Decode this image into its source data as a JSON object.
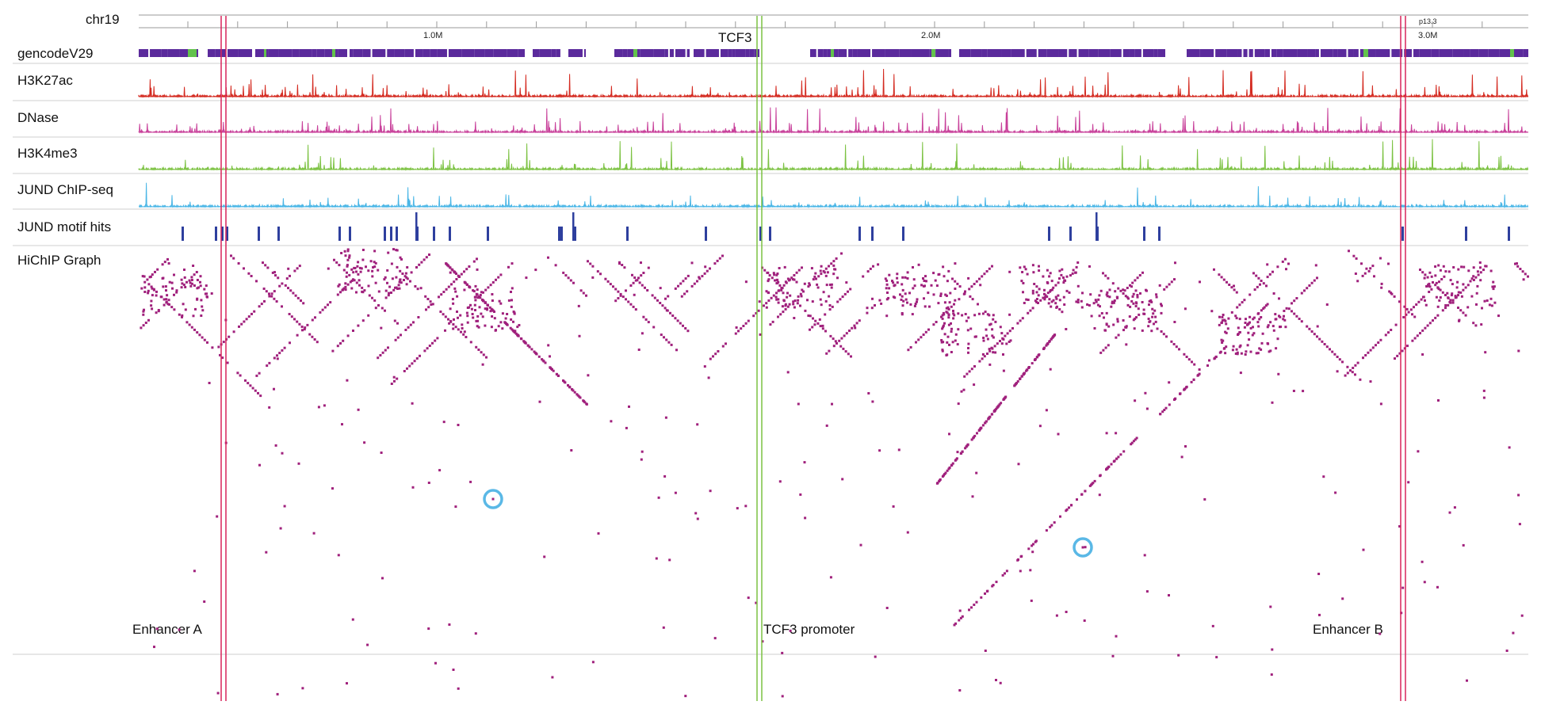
{
  "browser": {
    "chromosome": "chr19",
    "band": "p13.3",
    "ruler_ticks": [
      "1.0M",
      "2.0M",
      "3.0M"
    ],
    "gene_label": "TCF3"
  },
  "tracks": [
    {
      "label": "gencodeV29",
      "color": "#5b2a9c"
    },
    {
      "label": "H3K27ac",
      "color": "#d42a20"
    },
    {
      "label": "DNase",
      "color": "#c8409a"
    },
    {
      "label": "H3K4me3",
      "color": "#7cc242"
    },
    {
      "label": "JUND ChIP-seq",
      "color": "#4ab6e6"
    },
    {
      "label": "JUND motif hits",
      "color": "#2e3f9e"
    },
    {
      "label": "HiChIP Graph",
      "color": "#a0207c"
    }
  ],
  "annotations": {
    "enhancer_a": "Enhancer A",
    "promoter": "TCF3 promoter",
    "enhancer_b": "Enhancer B"
  },
  "highlight_colors": {
    "enhancer": "#d8245c",
    "promoter": "#7cc242",
    "circle": "#5ab8e6"
  }
}
